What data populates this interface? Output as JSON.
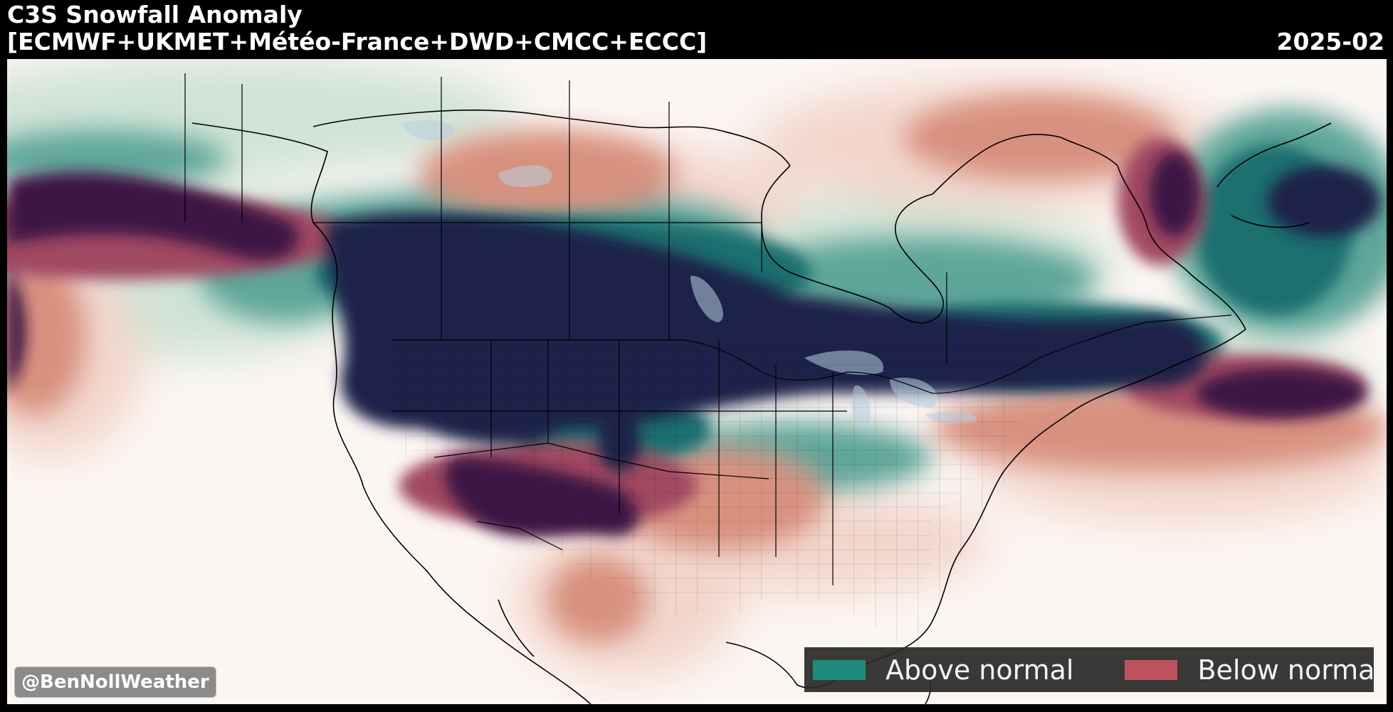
{
  "header": {
    "title": "C3S Snowfall Anomaly",
    "models": "[ECMWF+UKMET+Météo-France+DWD+CMCC+ECCC]",
    "date": "2025-02"
  },
  "legend": {
    "above_label": "Above normal",
    "above_color": "#1f8a7e",
    "below_label": "Below normal",
    "below_color": "#c0525f"
  },
  "credit": "@BenNollWeather",
  "colors": {
    "background": "#fcf6f3",
    "ocean_lakes": "#b8cfe0",
    "above_light": "#cfe3d6",
    "above_mid": "#5fa69a",
    "above_strong": "#1a6f6f",
    "above_extreme": "#1b2148",
    "below_light": "#f2d6cc",
    "below_mid": "#d8917f",
    "below_strong": "#a14a62",
    "below_extreme": "#3e1245"
  }
}
